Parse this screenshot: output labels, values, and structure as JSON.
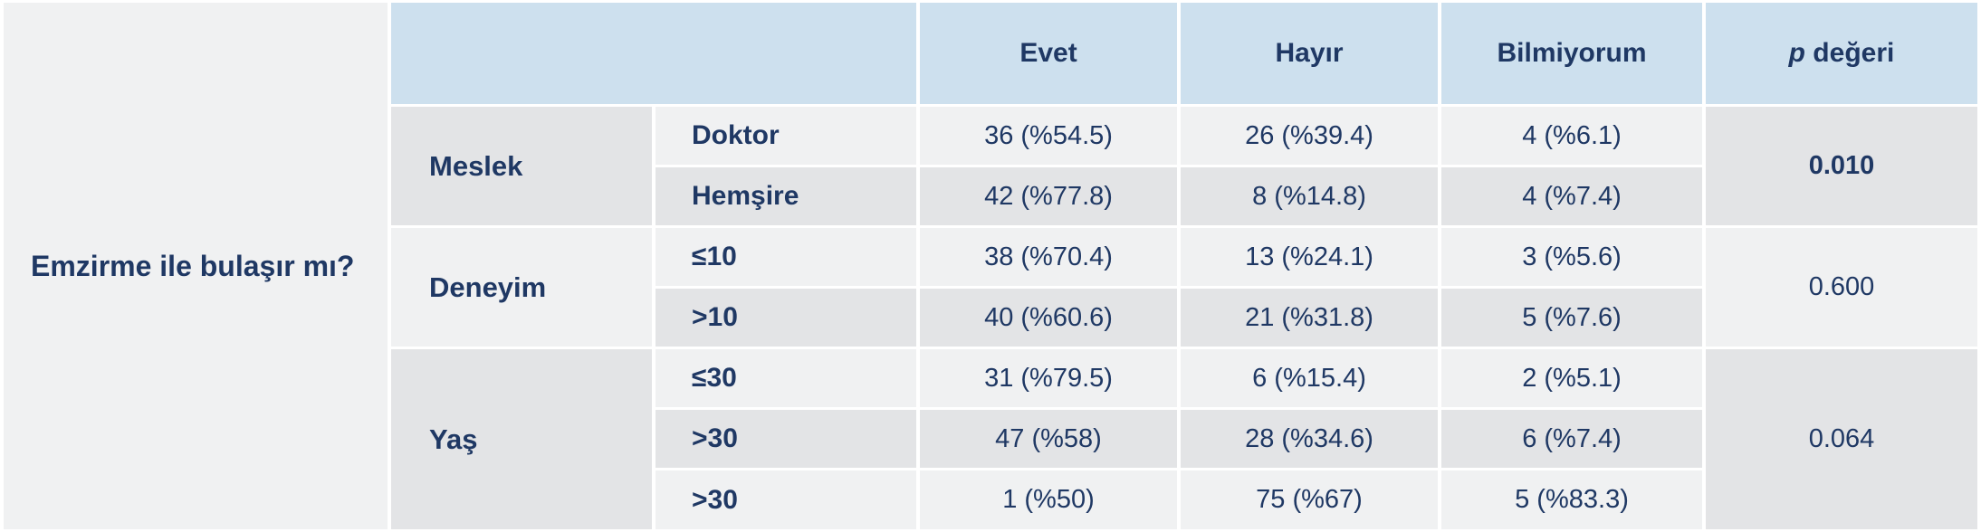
{
  "colors": {
    "header_blue": "#cde0ee",
    "row_light": "#f0f1f2",
    "row_dark": "#e3e4e6",
    "text_navy": "#1f3864",
    "gap_white": "#ffffff"
  },
  "table": {
    "question": "Emzirme ile bulaşır mı?",
    "column_headers": {
      "evet": "Evet",
      "hayir": "Hayır",
      "bilmiyorum": "Bilmiyorum",
      "p_italic": "p",
      "p_rest": " değeri"
    },
    "groups": [
      {
        "name": "Meslek",
        "p_value": "0.010",
        "rows": [
          {
            "label": "Doktor",
            "values": [
              "36 (%54.5)",
              "26 (%39.4)",
              "4 (%6.1)"
            ]
          },
          {
            "label": "Hemşire",
            "values": [
              "42 (%77.8)",
              "8 (%14.8)",
              "4 (%7.4)"
            ]
          }
        ]
      },
      {
        "name": "Deneyim",
        "p_value": "0.600",
        "rows": [
          {
            "label": "≤10",
            "values": [
              "38 (%70.4)",
              "13 (%24.1)",
              "3 (%5.6)"
            ]
          },
          {
            "label": ">10",
            "values": [
              "40 (%60.6)",
              "21 (%31.8)",
              "5 (%7.6)"
            ]
          }
        ]
      },
      {
        "name": "Yaş",
        "p_value": "0.064",
        "rows": [
          {
            "label": "≤30",
            "values": [
              "31 (%79.5)",
              "6 (%15.4)",
              "2 (%5.1)"
            ]
          },
          {
            "label": ">30",
            "values": [
              "47 (%58)",
              "28 (%34.6)",
              "6 (%7.4)"
            ]
          },
          {
            "label": ">30",
            "values": [
              "1 (%50)",
              "75 (%67)",
              "5 (%83.3)"
            ]
          }
        ]
      }
    ]
  }
}
